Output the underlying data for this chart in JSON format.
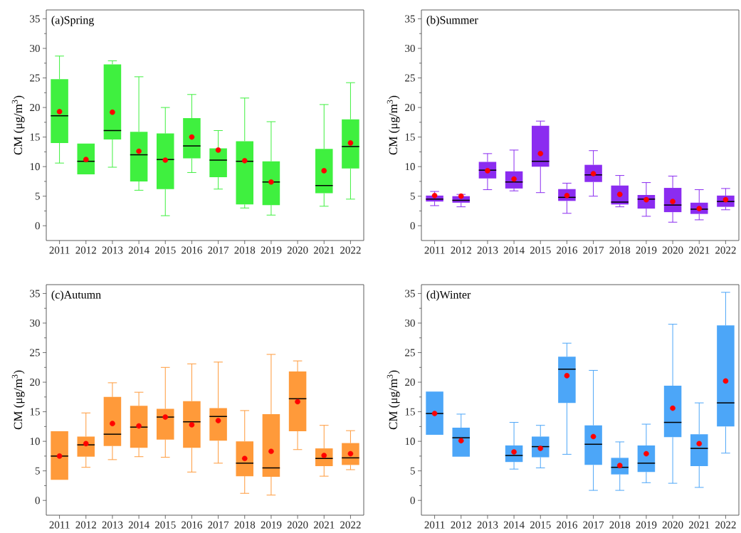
{
  "chart_data": [
    {
      "type": "box",
      "title": "(a)Spring",
      "ylabel": "CM (μg/m$^{3}$)",
      "color": "#3ff03f",
      "categories": [
        "2011",
        "2012",
        "2013",
        "2014",
        "2015",
        "2016",
        "2017",
        "2018",
        "2019",
        "2020",
        "2021",
        "2022"
      ],
      "ylim": [
        -2.5,
        36.5
      ],
      "yticks": [
        0,
        {
          "value": 2.5,
          "label": null
        },
        5,
        {
          "value": 7.5,
          "label": null
        },
        10,
        {
          "value": 12.5,
          "label": null
        },
        15,
        {
          "value": 17.5,
          "label": null
        },
        20,
        {
          "value": 22.5,
          "label": null
        },
        25,
        {
          "value": 27.5,
          "label": null
        },
        30,
        {
          "value": 32.5,
          "label": null
        },
        35
      ],
      "boxes": [
        {
          "low": 10.6,
          "q1": 14.0,
          "median": 18.6,
          "q3": 24.8,
          "high": 28.7,
          "mean": 19.3
        },
        {
          "low": 8.7,
          "q1": 8.7,
          "median": 10.9,
          "q3": 13.9,
          "high": 13.9,
          "mean": 11.2
        },
        {
          "low": 9.9,
          "q1": 14.6,
          "median": 16.1,
          "q3": 27.3,
          "high": 27.9,
          "mean": 19.2
        },
        {
          "low": 6.0,
          "q1": 7.5,
          "median": 12.0,
          "q3": 15.9,
          "high": 25.2,
          "mean": 12.6
        },
        {
          "low": 1.7,
          "q1": 6.2,
          "median": 11.2,
          "q3": 15.6,
          "high": 20.0,
          "mean": 11.1
        },
        {
          "low": 9.0,
          "q1": 11.4,
          "median": 13.5,
          "q3": 18.2,
          "high": 22.2,
          "mean": 15.0
        },
        {
          "low": 6.2,
          "q1": 8.2,
          "median": 11.1,
          "q3": 13.1,
          "high": 16.1,
          "mean": 12.8
        },
        {
          "low": 3.0,
          "q1": 3.6,
          "median": 10.9,
          "q3": 14.3,
          "high": 21.6,
          "mean": 11.0
        },
        {
          "low": 1.8,
          "q1": 3.5,
          "median": 7.4,
          "q3": 10.9,
          "high": 17.6,
          "mean": 7.4
        },
        null,
        {
          "low": 3.3,
          "q1": 5.5,
          "median": 6.8,
          "q3": 13.0,
          "high": 20.5,
          "mean": 9.3
        },
        {
          "low": 4.5,
          "q1": 9.7,
          "median": 13.4,
          "q3": 18.0,
          "high": 24.2,
          "mean": 14.0
        }
      ]
    },
    {
      "type": "box",
      "title": "(b)Summer",
      "ylabel": "CM (μg/m$^{3}$)",
      "color": "#8b2cf0",
      "categories": [
        "2011",
        "2012",
        "2013",
        "2014",
        "2015",
        "2016",
        "2017",
        "2018",
        "2019",
        "2020",
        "2021",
        "2022"
      ],
      "ylim": [
        -2.5,
        36.5
      ],
      "yticks": [
        0,
        {
          "value": 2.5,
          "label": null
        },
        5,
        {
          "value": 7.5,
          "label": null
        },
        10,
        {
          "value": 12.5,
          "label": null
        },
        15,
        {
          "value": 17.5,
          "label": null
        },
        20,
        {
          "value": 22.5,
          "label": null
        },
        25,
        {
          "value": 27.5,
          "label": null
        },
        30,
        {
          "value": 32.5,
          "label": null
        },
        35
      ],
      "boxes": [
        {
          "low": 3.4,
          "q1": 4.1,
          "median": 4.5,
          "q3": 5.1,
          "high": 5.8,
          "mean": 5.1
        },
        {
          "low": 3.2,
          "q1": 3.9,
          "median": 4.3,
          "q3": 5.0,
          "high": 5.3,
          "mean": 5.0
        },
        {
          "low": 6.1,
          "q1": 8.0,
          "median": 9.4,
          "q3": 10.8,
          "high": 12.2,
          "mean": 9.3
        },
        {
          "low": 5.9,
          "q1": 6.3,
          "median": 7.4,
          "q3": 9.2,
          "high": 12.8,
          "mean": 7.9
        },
        {
          "low": 5.6,
          "q1": 10.0,
          "median": 10.9,
          "q3": 16.9,
          "high": 17.7,
          "mean": 12.2
        },
        {
          "low": 2.1,
          "q1": 4.2,
          "median": 4.8,
          "q3": 6.2,
          "high": 7.2,
          "mean": 5.1
        },
        {
          "low": 5.0,
          "q1": 7.4,
          "median": 8.6,
          "q3": 10.3,
          "high": 12.7,
          "mean": 8.8
        },
        {
          "low": 3.2,
          "q1": 3.6,
          "median": 4.0,
          "q3": 6.8,
          "high": 8.5,
          "mean": 5.3
        },
        {
          "low": 1.6,
          "q1": 2.9,
          "median": 4.5,
          "q3": 5.2,
          "high": 7.3,
          "mean": 4.4
        },
        {
          "low": 0.6,
          "q1": 2.3,
          "median": 3.5,
          "q3": 6.4,
          "high": 8.4,
          "mean": 4.1
        },
        {
          "low": 1.0,
          "q1": 2.0,
          "median": 2.8,
          "q3": 3.9,
          "high": 6.1,
          "mean": 2.9
        },
        {
          "low": 2.7,
          "q1": 3.2,
          "median": 4.1,
          "q3": 5.1,
          "high": 6.3,
          "mean": 4.4
        }
      ]
    },
    {
      "type": "box",
      "title": "(c)Autumn",
      "ylabel": "CM (μg/m$^{3}$)",
      "color": "#ff9a3a",
      "categories": [
        "2011",
        "2012",
        "2013",
        "2014",
        "2015",
        "2016",
        "2017",
        "2018",
        "2019",
        "2020",
        "2021",
        "2022"
      ],
      "ylim": [
        -2.5,
        36.5
      ],
      "yticks": [
        0,
        {
          "value": 2.5,
          "label": null
        },
        5,
        {
          "value": 7.5,
          "label": null
        },
        10,
        {
          "value": 12.5,
          "label": null
        },
        15,
        {
          "value": 17.5,
          "label": null
        },
        20,
        {
          "value": 22.5,
          "label": null
        },
        25,
        {
          "value": 27.5,
          "label": null
        },
        30,
        {
          "value": 32.5,
          "label": null
        },
        35
      ],
      "boxes": [
        {
          "low": 3.5,
          "q1": 3.5,
          "median": 7.5,
          "q3": 11.7,
          "high": 11.7,
          "mean": 7.5
        },
        {
          "low": 5.6,
          "q1": 7.4,
          "median": 9.4,
          "q3": 10.8,
          "high": 14.8,
          "mean": 9.6
        },
        {
          "low": 6.9,
          "q1": 9.2,
          "median": 11.2,
          "q3": 17.5,
          "high": 19.9,
          "mean": 13.0
        },
        {
          "low": 7.4,
          "q1": 8.9,
          "median": 12.4,
          "q3": 16.0,
          "high": 18.3,
          "mean": 12.6
        },
        {
          "low": 7.3,
          "q1": 10.3,
          "median": 14.1,
          "q3": 15.5,
          "high": 22.5,
          "mean": 14.1
        },
        {
          "low": 4.8,
          "q1": 8.9,
          "median": 13.3,
          "q3": 16.8,
          "high": 23.1,
          "mean": 12.8
        },
        {
          "low": 6.3,
          "q1": 10.1,
          "median": 14.2,
          "q3": 15.6,
          "high": 23.4,
          "mean": 13.5
        },
        {
          "low": 1.2,
          "q1": 4.1,
          "median": 6.3,
          "q3": 10.0,
          "high": 15.2,
          "mean": 7.1
        },
        {
          "low": 0.9,
          "q1": 4.0,
          "median": 5.5,
          "q3": 14.6,
          "high": 24.7,
          "mean": 8.3
        },
        {
          "low": 8.6,
          "q1": 11.7,
          "median": 17.2,
          "q3": 21.8,
          "high": 23.6,
          "mean": 16.7
        },
        {
          "low": 4.1,
          "q1": 5.8,
          "median": 7.1,
          "q3": 8.8,
          "high": 12.7,
          "mean": 7.6
        },
        {
          "low": 5.2,
          "q1": 6.0,
          "median": 7.2,
          "q3": 9.7,
          "high": 11.8,
          "mean": 7.9
        }
      ]
    },
    {
      "type": "box",
      "title": "(d)Winter",
      "ylabel": "CM (μg/m$^{3}$)",
      "color": "#4ca6f8",
      "categories": [
        "2011",
        "2012",
        "2013",
        "2014",
        "2015",
        "2016",
        "2017",
        "2018",
        "2019",
        "2020",
        "2021",
        "2022"
      ],
      "ylim": [
        -2.5,
        36.5
      ],
      "yticks": [
        0,
        {
          "value": 2.5,
          "label": null
        },
        5,
        {
          "value": 7.5,
          "label": null
        },
        10,
        {
          "value": 12.5,
          "label": null
        },
        15,
        {
          "value": 17.5,
          "label": null
        },
        20,
        {
          "value": 22.5,
          "label": null
        },
        25,
        {
          "value": 27.5,
          "label": null
        },
        30,
        {
          "value": 32.5,
          "label": null
        },
        35
      ],
      "boxes": [
        {
          "low": 11.1,
          "q1": 11.1,
          "median": 14.7,
          "q3": 18.4,
          "high": 18.4,
          "mean": 14.7
        },
        {
          "low": 7.4,
          "q1": 7.4,
          "median": 10.6,
          "q3": 12.3,
          "high": 14.6,
          "mean": 10.1
        },
        null,
        {
          "low": 5.3,
          "q1": 6.5,
          "median": 7.6,
          "q3": 9.3,
          "high": 13.2,
          "mean": 8.2
        },
        {
          "low": 5.5,
          "q1": 7.3,
          "median": 9.1,
          "q3": 10.8,
          "high": 12.7,
          "mean": 8.8
        },
        {
          "low": 7.8,
          "q1": 16.5,
          "median": 22.2,
          "q3": 24.3,
          "high": 26.6,
          "mean": 21.1
        },
        {
          "low": 1.7,
          "q1": 6.0,
          "median": 9.5,
          "q3": 12.7,
          "high": 22.0,
          "mean": 10.8
        },
        {
          "low": 1.7,
          "q1": 4.4,
          "median": 5.6,
          "q3": 7.2,
          "high": 9.9,
          "mean": 5.9
        },
        {
          "low": 3.0,
          "q1": 4.8,
          "median": 6.3,
          "q3": 9.3,
          "high": 12.9,
          "mean": 7.9
        },
        {
          "low": 2.9,
          "q1": 10.7,
          "median": 13.2,
          "q3": 19.4,
          "high": 29.8,
          "mean": 15.6
        },
        {
          "low": 2.2,
          "q1": 5.8,
          "median": 8.8,
          "q3": 11.2,
          "high": 16.5,
          "mean": 9.6
        },
        {
          "low": 8.0,
          "q1": 12.5,
          "median": 16.5,
          "q3": 29.6,
          "high": 35.2,
          "mean": 20.2
        }
      ]
    }
  ]
}
